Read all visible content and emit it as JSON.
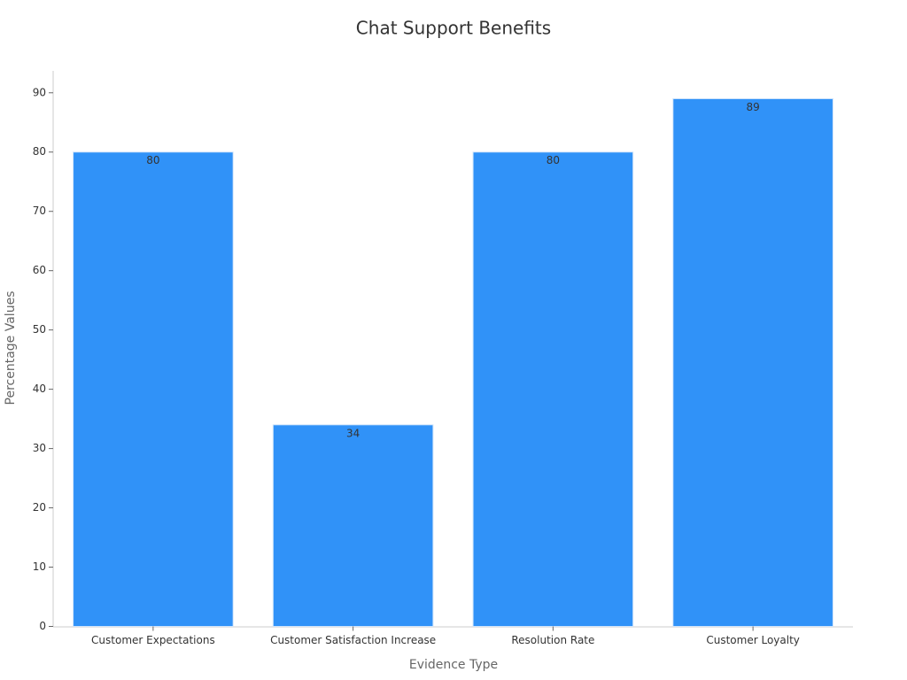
{
  "chart_data": {
    "type": "bar",
    "title": "Chat Support Benefits",
    "x_label": "Evidence Type",
    "y_label": "Percentage Values",
    "categories": [
      "Customer Expectations",
      "Customer Satisfaction Increase",
      "Resolution Rate",
      "Customer Loyalty"
    ],
    "values": [
      80,
      34,
      80,
      89
    ],
    "color": "#3092f8",
    "ylim": [
      0,
      93.7
    ],
    "yticks": [
      0,
      10,
      20,
      30,
      40,
      50,
      60,
      70,
      80,
      90
    ]
  }
}
